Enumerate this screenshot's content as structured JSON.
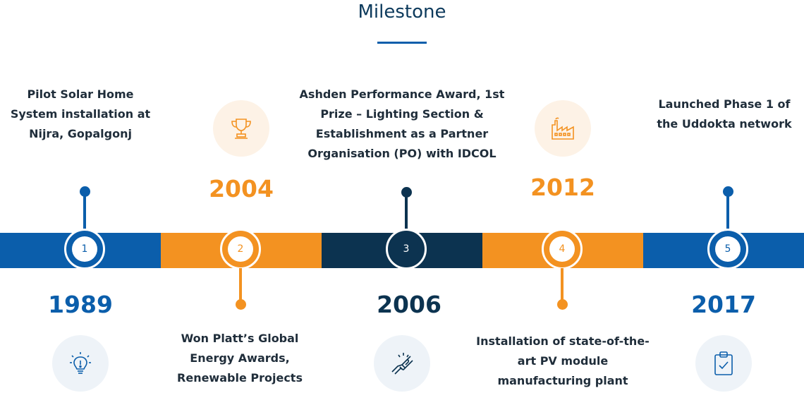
{
  "title": "Milestone",
  "colors": {
    "blue": "#0b5eab",
    "orange": "#f39221",
    "navy": "#0c3350",
    "icon_bg_orange": "#fdf2e6",
    "icon_bg_blue": "#eef3f8"
  },
  "milestones": [
    {
      "number": "1",
      "year": "1989",
      "text": "Pilot Solar Home System installation at Nijra, Gopalgonj",
      "icon": "lightbulb-icon"
    },
    {
      "number": "2",
      "year": "2004",
      "text": "Won Platt’s Global Energy Awards, Renewable Projects",
      "icon": "trophy-icon"
    },
    {
      "number": "3",
      "year": "2006",
      "text": "Ashden Performance Award, 1st Prize – Lighting Section & Establishment as a Partner Organisation (PO) with IDCOL",
      "icon": "handshake-icon"
    },
    {
      "number": "4",
      "year": "2012",
      "text": "Installation of state-of-the-art PV module manufacturing plant",
      "icon": "factory-icon"
    },
    {
      "number": "5",
      "year": "2017",
      "text": "Launched Phase 1 of the Uddokta network",
      "icon": "clipboard-check-icon"
    }
  ]
}
